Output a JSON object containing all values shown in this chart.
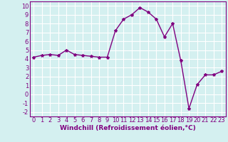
{
  "x": [
    0,
    1,
    2,
    3,
    4,
    5,
    6,
    7,
    8,
    9,
    10,
    11,
    12,
    13,
    14,
    15,
    16,
    17,
    18,
    19,
    20,
    21,
    22,
    23
  ],
  "y": [
    4.2,
    4.4,
    4.5,
    4.4,
    5.0,
    4.5,
    4.4,
    4.3,
    4.2,
    4.2,
    7.2,
    8.5,
    9.0,
    9.8,
    9.3,
    8.5,
    6.5,
    8.0,
    3.8,
    -1.6,
    1.1,
    2.2,
    2.2,
    2.6
  ],
  "line_color": "#800080",
  "marker": "*",
  "marker_size": 3,
  "bg_color": "#d4f0f0",
  "grid_color": "#ffffff",
  "xlabel": "Windchill (Refroidissement éolien,°C)",
  "xlim": [
    -0.5,
    23.5
  ],
  "ylim": [
    -2.5,
    10.5
  ],
  "xticks": [
    0,
    1,
    2,
    3,
    4,
    5,
    6,
    7,
    8,
    9,
    10,
    11,
    12,
    13,
    14,
    15,
    16,
    17,
    18,
    19,
    20,
    21,
    22,
    23
  ],
  "yticks": [
    -2,
    -1,
    0,
    1,
    2,
    3,
    4,
    5,
    6,
    7,
    8,
    9,
    10
  ],
  "xlabel_fontsize": 6.5,
  "tick_fontsize": 6,
  "line_width": 1.0
}
